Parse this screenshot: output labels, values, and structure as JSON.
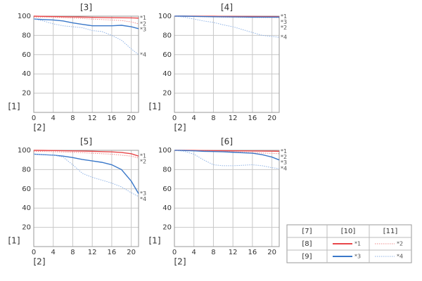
{
  "chart_data": [
    {
      "type": "line",
      "title": "[3]",
      "xlabel": "[2]",
      "ylabel": "[1]",
      "x": [
        0,
        2,
        4,
        6,
        8,
        10,
        12,
        14,
        16,
        18,
        20,
        21.5
      ],
      "xlim": [
        0,
        21.5
      ],
      "xticks": [
        0,
        4,
        8,
        12,
        16,
        20
      ],
      "ylim": [
        0,
        100
      ],
      "yticks": [
        20,
        40,
        60,
        80,
        100
      ],
      "grid": true,
      "series": [
        {
          "name": "*1",
          "color": "#e8474a",
          "style": "solid",
          "values": [
            100,
            99.8,
            99.6,
            99.4,
            99.2,
            99,
            98.8,
            98.6,
            98.4,
            98.3,
            98.2,
            98
          ]
        },
        {
          "name": "*2",
          "color": "#f08a8a",
          "style": "dotted",
          "values": [
            99,
            99,
            98.8,
            98.5,
            98,
            97.5,
            97,
            96.5,
            96,
            95.5,
            94,
            92
          ]
        },
        {
          "name": "*3",
          "color": "#3a78c9",
          "style": "solid",
          "values": [
            97,
            96.5,
            96,
            95,
            93,
            91.5,
            90,
            90,
            90,
            90.5,
            89,
            87
          ]
        },
        {
          "name": "*4",
          "color": "#8fb3e6",
          "style": "dotted",
          "values": [
            97,
            95,
            92,
            90,
            89,
            88,
            85,
            84,
            80,
            75,
            66,
            60
          ]
        }
      ]
    },
    {
      "type": "line",
      "title": "[4]",
      "xlabel": "[2]",
      "ylabel": "[1]",
      "x": [
        0,
        2,
        4,
        6,
        8,
        10,
        12,
        14,
        16,
        18,
        20,
        21.5
      ],
      "xlim": [
        0,
        21.5
      ],
      "xticks": [
        0,
        4,
        8,
        12,
        16,
        20
      ],
      "ylim": [
        0,
        100
      ],
      "yticks": [
        20,
        40,
        60,
        80,
        100
      ],
      "grid": true,
      "series": [
        {
          "name": "*1",
          "color": "#e8474a",
          "style": "solid",
          "values": [
            100,
            100,
            100,
            99.9,
            99.9,
            99.8,
            99.8,
            99.7,
            99.7,
            99.6,
            99.6,
            99.5
          ]
        },
        {
          "name": "*2",
          "color": "#f08a8a",
          "style": "dotted",
          "values": [
            100,
            99.8,
            99.6,
            99.4,
            99.2,
            99,
            98.9,
            98.8,
            98.7,
            98.6,
            98.5,
            98.5
          ]
        },
        {
          "name": "*3",
          "color": "#3a78c9",
          "style": "solid",
          "values": [
            100,
            100,
            99.8,
            99.6,
            99.4,
            99.3,
            99.2,
            99.1,
            99,
            99,
            99,
            99
          ]
        },
        {
          "name": "*4",
          "color": "#8fb3e6",
          "style": "dotted",
          "values": [
            100,
            99,
            97,
            95,
            93.5,
            91,
            89,
            86,
            83,
            80,
            79,
            78
          ]
        }
      ]
    },
    {
      "type": "line",
      "title": "[5]",
      "xlabel": "[2]",
      "ylabel": "[1]",
      "x": [
        0,
        2,
        4,
        6,
        8,
        10,
        12,
        14,
        16,
        18,
        20,
        21.5
      ],
      "xlim": [
        0,
        21.5
      ],
      "xticks": [
        0,
        4,
        8,
        12,
        16,
        20
      ],
      "ylim": [
        0,
        100
      ],
      "yticks": [
        20,
        40,
        60,
        80,
        100
      ],
      "grid": true,
      "series": [
        {
          "name": "*1",
          "color": "#e8474a",
          "style": "solid",
          "values": [
            100,
            99.9,
            99.8,
            99.6,
            99.4,
            99.2,
            99,
            98.7,
            98.4,
            97.8,
            96.5,
            94
          ]
        },
        {
          "name": "*2",
          "color": "#f08a8a",
          "style": "dotted",
          "values": [
            99,
            98.8,
            98.6,
            98.3,
            98,
            97.6,
            97,
            96.5,
            96,
            95,
            94,
            92
          ]
        },
        {
          "name": "*3",
          "color": "#3a78c9",
          "style": "solid",
          "values": [
            96,
            95.5,
            95,
            94,
            92.5,
            90.5,
            89,
            87.5,
            85,
            80,
            68,
            55
          ]
        },
        {
          "name": "*4",
          "color": "#8fb3e6",
          "style": "dotted",
          "values": [
            96,
            95.5,
            95,
            93,
            85,
            76,
            72,
            69,
            66,
            62,
            56,
            52
          ]
        }
      ]
    },
    {
      "type": "line",
      "title": "[6]",
      "xlabel": "[2]",
      "ylabel": "[1]",
      "x": [
        0,
        2,
        4,
        6,
        8,
        10,
        12,
        14,
        16,
        18,
        20,
        21.5
      ],
      "xlim": [
        0,
        21.5
      ],
      "xticks": [
        0,
        4,
        8,
        12,
        16,
        20
      ],
      "ylim": [
        0,
        100
      ],
      "yticks": [
        20,
        40,
        60,
        80,
        100
      ],
      "grid": true,
      "series": [
        {
          "name": "*1",
          "color": "#e8474a",
          "style": "solid",
          "values": [
            100,
            100,
            99.9,
            99.8,
            99.7,
            99.6,
            99.5,
            99.4,
            99.3,
            99.2,
            99.1,
            99
          ]
        },
        {
          "name": "*2",
          "color": "#f08a8a",
          "style": "dotted",
          "values": [
            100,
            99.8,
            99.5,
            99.2,
            99,
            98.7,
            98.4,
            98,
            97.6,
            97.2,
            96.8,
            96.5
          ]
        },
        {
          "name": "*3",
          "color": "#3a78c9",
          "style": "solid",
          "values": [
            100,
            99.8,
            99.5,
            99,
            98.8,
            98.5,
            98,
            97.5,
            97,
            95.5,
            93,
            90
          ]
        },
        {
          "name": "*4",
          "color": "#8fb3e6",
          "style": "dotted",
          "values": [
            100,
            99,
            96,
            90,
            85,
            84,
            84,
            84.5,
            85,
            84,
            82,
            81
          ]
        }
      ]
    }
  ],
  "legend_table": {
    "headers": [
      "[7]",
      "[10]",
      "[11]"
    ],
    "rows": [
      "[8]",
      "[9]"
    ]
  }
}
